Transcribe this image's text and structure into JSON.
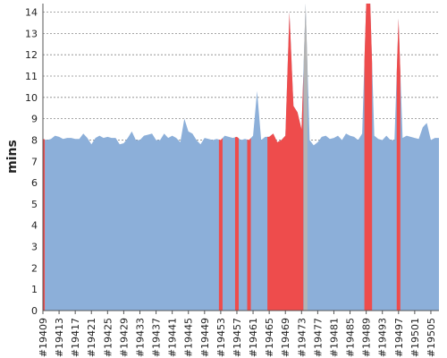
{
  "chart_data": {
    "type": "area",
    "title": "",
    "xlabel": "",
    "ylabel": "mins",
    "ylim": [
      0,
      14.4
    ],
    "y_ticks": [
      "0",
      "1",
      "2",
      "3",
      "4",
      "5",
      "6",
      "7",
      "8",
      "9",
      "10",
      "11",
      "12",
      "13",
      "14"
    ],
    "x_start_build": 19409,
    "x_end_build": 19507,
    "x_tick_labels": [
      "#19409",
      "#19413",
      "#19417",
      "#19421",
      "#19425",
      "#19429",
      "#19433",
      "#19437",
      "#19441",
      "#19445",
      "#19449",
      "#19453",
      "#19457",
      "#19461",
      "#19465",
      "#19469",
      "#19473",
      "#19477",
      "#19481",
      "#19485",
      "#19489",
      "#19493",
      "#19497",
      "#19501",
      "#19505"
    ],
    "grid": "horizontal dashed",
    "colors": {
      "success": "#8cafd9",
      "failure": "#ee4c4c",
      "aborted": "#b4b4b4",
      "grid": "#888888",
      "axis": "#555555"
    },
    "series": [
      {
        "status": "success",
        "points": [
          [
            19409,
            8.05
          ],
          [
            19410,
            8.0
          ],
          [
            19411,
            8.05
          ],
          [
            19412,
            8.2
          ],
          [
            19413,
            8.15
          ],
          [
            19414,
            8.05
          ],
          [
            19415,
            8.1
          ],
          [
            19416,
            8.1
          ],
          [
            19417,
            8.05
          ],
          [
            19418,
            8.05
          ],
          [
            19419,
            8.3
          ],
          [
            19420,
            8.1
          ],
          [
            19421,
            7.8
          ],
          [
            19422,
            8.1
          ],
          [
            19423,
            8.2
          ],
          [
            19424,
            8.1
          ],
          [
            19425,
            8.15
          ],
          [
            19426,
            8.1
          ],
          [
            19427,
            8.1
          ],
          [
            19428,
            7.8
          ],
          [
            19429,
            7.85
          ],
          [
            19430,
            8.1
          ],
          [
            19431,
            8.4
          ],
          [
            19432,
            8.0
          ],
          [
            19433,
            8.0
          ],
          [
            19434,
            8.2
          ],
          [
            19435,
            8.25
          ],
          [
            19436,
            8.3
          ],
          [
            19437,
            8.0
          ],
          [
            19438,
            8.0
          ],
          [
            19439,
            8.3
          ],
          [
            19440,
            8.1
          ],
          [
            19441,
            8.2
          ],
          [
            19442,
            8.1
          ],
          [
            19443,
            7.9
          ],
          [
            19444,
            9.0
          ],
          [
            19445,
            8.4
          ],
          [
            19446,
            8.3
          ],
          [
            19447,
            8.0
          ],
          [
            19448,
            7.8
          ],
          [
            19449,
            8.1
          ],
          [
            19450,
            8.05
          ],
          [
            19451,
            8.0
          ],
          [
            19452,
            8.05
          ],
          [
            19453,
            8.0
          ],
          [
            19454,
            8.2
          ],
          [
            19455,
            8.15
          ],
          [
            19456,
            8.1
          ],
          [
            19457,
            8.15
          ],
          [
            19458,
            8.0
          ],
          [
            19459,
            8.05
          ],
          [
            19460,
            8.0
          ],
          [
            19461,
            8.2
          ],
          [
            19462,
            10.3
          ],
          [
            19463,
            8.0
          ],
          [
            19464,
            8.15
          ],
          [
            19465,
            8.15
          ],
          [
            19466,
            8.3
          ],
          [
            19467,
            7.9
          ],
          [
            19468,
            8.0
          ],
          [
            19469,
            8.2
          ],
          [
            19470,
            14.0
          ],
          [
            19471,
            9.6
          ],
          [
            19472,
            9.3
          ],
          [
            19473,
            8.5
          ],
          [
            19474,
            14.4
          ],
          [
            19475,
            8.0
          ],
          [
            19476,
            7.75
          ],
          [
            19477,
            7.9
          ],
          [
            19478,
            8.15
          ],
          [
            19479,
            8.2
          ],
          [
            19480,
            8.05
          ],
          [
            19481,
            8.1
          ],
          [
            19482,
            8.2
          ],
          [
            19483,
            8.0
          ],
          [
            19484,
            8.3
          ],
          [
            19485,
            8.2
          ],
          [
            19486,
            8.15
          ],
          [
            19487,
            8.0
          ],
          [
            19488,
            8.3
          ],
          [
            19489,
            14.4
          ],
          [
            19490,
            14.4
          ],
          [
            19491,
            8.2
          ],
          [
            19492,
            8.05
          ],
          [
            19493,
            8.0
          ],
          [
            19494,
            8.2
          ],
          [
            19495,
            8.0
          ],
          [
            19496,
            8.0
          ],
          [
            19497,
            13.7
          ],
          [
            19498,
            8.1
          ],
          [
            19499,
            8.2
          ],
          [
            19500,
            8.15
          ],
          [
            19501,
            8.1
          ],
          [
            19502,
            8.05
          ],
          [
            19503,
            8.6
          ],
          [
            19504,
            8.8
          ],
          [
            19505,
            8.0
          ],
          [
            19506,
            8.1
          ],
          [
            19507,
            8.1
          ]
        ]
      },
      {
        "status": "failure",
        "builds": [
          [
            19409,
            19409
          ],
          [
            19453,
            19453
          ],
          [
            19457,
            19457
          ],
          [
            19460,
            19460
          ],
          [
            19465,
            19473
          ],
          [
            19489,
            19490
          ],
          [
            19497,
            19497
          ]
        ]
      },
      {
        "status": "aborted",
        "builds": [
          [
            19474,
            19474
          ]
        ]
      }
    ]
  }
}
